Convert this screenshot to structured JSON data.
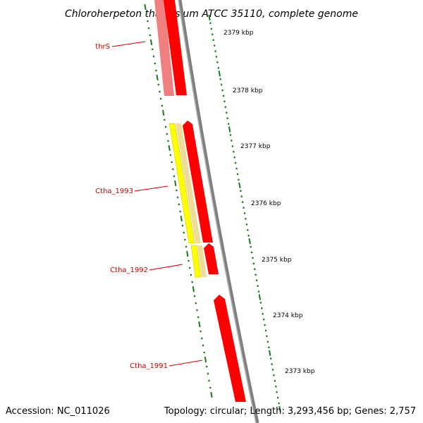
{
  "title": "Chloroherpeton thalassium ATCC 35110, complete genome",
  "footer": {
    "accession": "Accession: NC_011026",
    "summary": "Topology: circular; Length: 3,293,456 bp; Genes: 2,757"
  },
  "scale_labels": [
    "2379 kbp",
    "2378 kbp",
    "2377 kbp",
    "2376 kbp",
    "2375 kbp",
    "2374 kbp",
    "2373 kbp"
  ],
  "gene_labels": [
    "thrS",
    "Ctha_1993",
    "Ctha_1992",
    "Ctha_1991"
  ],
  "colors": {
    "backbone": "#808080",
    "gene_forward": "#ff0000",
    "gene_shadow": "#f08080",
    "cds_yellow": "#ffff00",
    "cds_beige": "#eedd99",
    "tick": "#1a7a1a",
    "label": "#cc0000"
  }
}
